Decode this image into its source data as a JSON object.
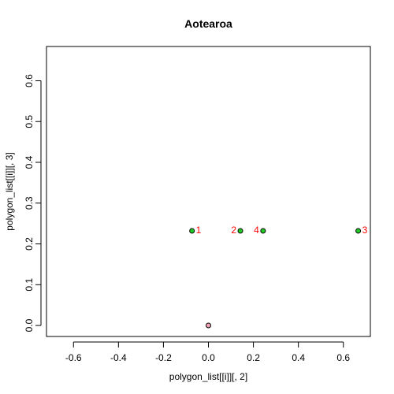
{
  "chart_data": {
    "type": "scatter",
    "title": "Aotearoa",
    "xlabel": "polygon_list[[i]][, 2]",
    "ylabel": "polygon_list[[i]][, 3]",
    "xlim": [
      -0.72,
      0.72
    ],
    "ylim": [
      -0.027,
      0.684
    ],
    "x_ticks": [
      -0.6,
      -0.4,
      -0.2,
      0.0,
      0.2,
      0.4,
      0.6
    ],
    "y_ticks": [
      0.0,
      0.1,
      0.2,
      0.3,
      0.4,
      0.5,
      0.6
    ],
    "x_tick_labels": [
      "-0.6",
      "-0.4",
      "-0.2",
      "0.0",
      "0.2",
      "0.4",
      "0.6"
    ],
    "y_tick_labels": [
      "0.0",
      "0.1",
      "0.2",
      "0.3",
      "0.4",
      "0.5",
      "0.6"
    ],
    "grid": false,
    "origin_point": {
      "x": 0.0,
      "y": 0.0,
      "fill": "#f4a6b8"
    },
    "points": [
      {
        "x": -0.073,
        "y": 0.232,
        "label": "1",
        "label_side": "right"
      },
      {
        "x": 0.142,
        "y": 0.232,
        "label": "2",
        "label_side": "left"
      },
      {
        "x": 0.243,
        "y": 0.232,
        "label": "4",
        "label_side": "left"
      },
      {
        "x": 0.666,
        "y": 0.232,
        "label": "3",
        "label_side": "right"
      }
    ],
    "colors": {
      "point_fill": "#22cc22",
      "point_label": "#ff0000",
      "stroke": "#000000"
    }
  }
}
